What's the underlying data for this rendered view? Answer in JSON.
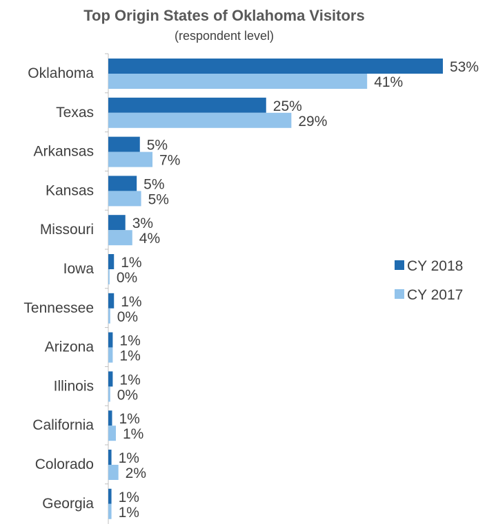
{
  "chart_data": {
    "type": "bar",
    "orientation": "horizontal",
    "title": "Top Origin States of Oklahoma Visitors",
    "subtitle": "(respondent level)",
    "categories": [
      "Oklahoma",
      "Texas",
      "Arkansas",
      "Kansas",
      "Missouri",
      "Iowa",
      "Tennessee",
      "Arizona",
      "Illinois",
      "California",
      "Colorado",
      "Georgia"
    ],
    "series": [
      {
        "name": "CY 2018",
        "color": "#1F6BB0",
        "values": [
          53,
          25,
          5,
          5,
          3,
          1,
          1,
          1,
          1,
          1,
          1,
          1
        ],
        "labels": [
          "53%",
          "25%",
          "5%",
          "5%",
          "3%",
          "1%",
          "1%",
          "1%",
          "1%",
          "1%",
          "1%",
          "1%"
        ],
        "estimated_values": [
          53,
          25,
          5,
          4.5,
          2.7,
          0.9,
          0.9,
          0.7,
          0.7,
          0.6,
          0.5,
          0.5
        ]
      },
      {
        "name": "CY 2017",
        "color": "#92C3EB",
        "values": [
          41,
          29,
          7,
          5,
          4,
          0,
          0,
          1,
          0,
          1,
          2,
          1
        ],
        "labels": [
          "41%",
          "29%",
          "7%",
          "5%",
          "4%",
          "0%",
          "0%",
          "1%",
          "0%",
          "1%",
          "2%",
          "1%"
        ],
        "estimated_values": [
          41,
          29,
          7,
          5.2,
          3.8,
          0.2,
          0.3,
          0.7,
          0.3,
          1.2,
          1.6,
          0.5
        ]
      }
    ],
    "xlim": [
      0,
      55
    ],
    "grid": false,
    "legend_position": "right"
  }
}
